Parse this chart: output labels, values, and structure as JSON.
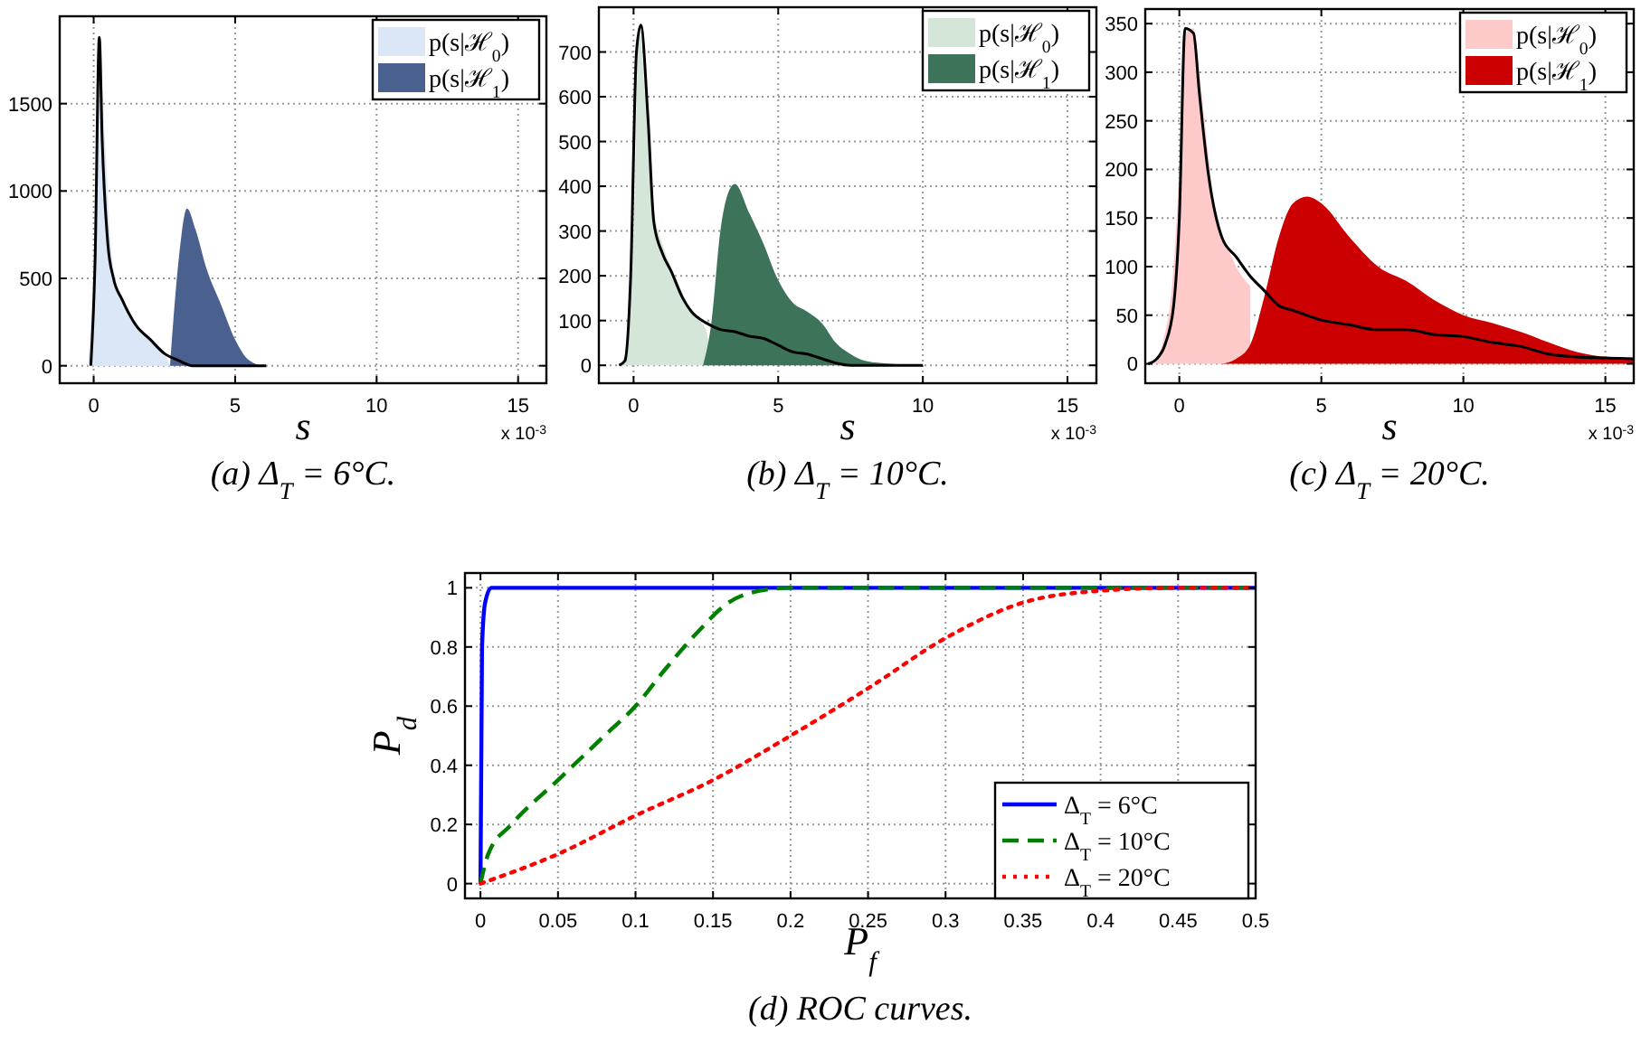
{
  "chart_data": [
    {
      "type": "area",
      "title": "(a) Δ$_{T}$ = 6°C.",
      "xlabel": "s",
      "annotations": [
        "x 10$^{-3}$"
      ],
      "xlim": [
        -1.2,
        16
      ],
      "ylim": [
        -100,
        2000
      ],
      "xticks": [
        0,
        5,
        10,
        15
      ],
      "yticks": [
        0,
        500,
        1000,
        1500
      ],
      "grid": true,
      "legend": "top right",
      "series": [
        {
          "name": "p(s|ℋ$_{0}$)",
          "color": "#dbe7f7",
          "x": [
            -0.2,
            0,
            0.2,
            0.4,
            0.6,
            0.8,
            1,
            1.5,
            2,
            2.5,
            2.7
          ],
          "values": [
            0,
            600,
            1880,
            1300,
            700,
            480,
            400,
            230,
            140,
            70,
            0
          ]
        },
        {
          "name": "p(s|ℋ$_{1}$)",
          "color": "#4a6190",
          "x": [
            2.7,
            3,
            3.3,
            3.6,
            4,
            4.5,
            5,
            5.5,
            6,
            6.1
          ],
          "values": [
            0,
            600,
            900,
            780,
            550,
            350,
            150,
            30,
            0,
            0
          ]
        },
        {
          "type": "line",
          "color": "#000000",
          "x": [
            -0.1,
            0.05,
            0.2,
            0.3,
            0.5,
            0.7,
            1,
            1.5,
            2,
            2.5,
            3,
            3.5,
            6.1
          ],
          "values": [
            0,
            600,
            1880,
            1300,
            700,
            500,
            380,
            230,
            150,
            70,
            30,
            0,
            0
          ]
        }
      ]
    },
    {
      "type": "area",
      "title": "(b) Δ$_{T}$ = 10°C.",
      "xlabel": "s",
      "annotations": [
        "x 10$^{-3}$"
      ],
      "xlim": [
        -1.2,
        16
      ],
      "ylim": [
        -40,
        800
      ],
      "xticks": [
        0,
        5,
        10,
        15
      ],
      "yticks": [
        0,
        100,
        200,
        300,
        400,
        500,
        600,
        700
      ],
      "grid": true,
      "legend": "top right",
      "series": [
        {
          "name": "p(s|ℋ$_{0}$)",
          "color": "#d3e6d8",
          "x": [
            -0.5,
            -0.2,
            0,
            0.2,
            0.4,
            0.7,
            1,
            1.3,
            1.7,
            2,
            2.5,
            2.7
          ],
          "values": [
            0,
            50,
            300,
            760,
            600,
            350,
            270,
            220,
            160,
            120,
            80,
            0
          ]
        },
        {
          "name": "p(s|ℋ$_{1}$)",
          "color": "#3d7358",
          "x": [
            2.4,
            2.7,
            3,
            3.3,
            3.5,
            4,
            4.5,
            5,
            5.5,
            6,
            6.5,
            7,
            7.5,
            8,
            9,
            10
          ],
          "values": [
            0,
            100,
            300,
            390,
            405,
            340,
            270,
            190,
            140,
            120,
            95,
            50,
            25,
            10,
            3,
            0
          ]
        },
        {
          "type": "line",
          "color": "#000000",
          "x": [
            -0.5,
            -0.3,
            -0.1,
            0.1,
            0.25,
            0.5,
            0.7,
            1,
            1.3,
            1.7,
            2,
            2.5,
            3,
            3.5,
            4,
            4.5,
            5,
            5.5,
            6,
            6.5,
            7,
            7.5,
            10
          ],
          "values": [
            0,
            10,
            200,
            700,
            760,
            550,
            320,
            250,
            210,
            150,
            120,
            95,
            80,
            75,
            65,
            60,
            45,
            30,
            25,
            15,
            5,
            0,
            0
          ]
        }
      ]
    },
    {
      "type": "area",
      "title": "(c) Δ$_{T}$ = 20°C.",
      "xlabel": "s",
      "annotations": [
        "x 10$^{-3}$"
      ],
      "xlim": [
        -1.2,
        16
      ],
      "ylim": [
        -20,
        365
      ],
      "xticks": [
        0,
        5,
        10,
        15
      ],
      "yticks": [
        0,
        50,
        100,
        150,
        200,
        250,
        300,
        350
      ],
      "grid": true,
      "legend": "top right",
      "series": [
        {
          "name": "p(s|ℋ$_{0}$)",
          "color": "#fdc9c9",
          "x": [
            -1.1,
            -0.8,
            -0.6,
            -0.2,
            0,
            0.2,
            0.5,
            0.7,
            1,
            1.3,
            1.7,
            2,
            2.5
          ],
          "values": [
            0,
            5,
            20,
            100,
            200,
            340,
            345,
            300,
            220,
            150,
            120,
            100,
            80
          ]
        },
        {
          "name": "p(s|ℋ$_{1}$)",
          "color": "#cc0000",
          "x": [
            1.5,
            2,
            2.5,
            3,
            3.5,
            4,
            4.5,
            5,
            6,
            7,
            8,
            9,
            10,
            11,
            12,
            13,
            14,
            15,
            16
          ],
          "values": [
            0,
            5,
            20,
            70,
            130,
            165,
            172,
            165,
            130,
            100,
            85,
            65,
            50,
            42,
            33,
            22,
            12,
            7,
            5
          ]
        },
        {
          "type": "line",
          "color": "#000000",
          "x": [
            -1.1,
            -0.8,
            -0.5,
            -0.2,
            0,
            0.2,
            0.5,
            0.7,
            1,
            1.5,
            2,
            2.5,
            3,
            3.5,
            4,
            5,
            6,
            7,
            8,
            9,
            10,
            11,
            12,
            13,
            14,
            15,
            16
          ],
          "values": [
            0,
            5,
            20,
            60,
            150,
            345,
            340,
            280,
            200,
            130,
            110,
            90,
            75,
            60,
            55,
            45,
            40,
            35,
            35,
            30,
            28,
            22,
            18,
            10,
            7,
            6,
            5
          ]
        }
      ]
    },
    {
      "type": "line",
      "title": "(d) ROC curves.",
      "xlabel": "P$_{f}$",
      "ylabel": "P$_{d}$",
      "xlim": [
        -0.01,
        0.5
      ],
      "ylim": [
        -0.05,
        1.05
      ],
      "xticks": [
        0,
        0.05,
        0.1,
        0.15,
        0.2,
        0.25,
        0.3,
        0.35,
        0.4,
        0.45,
        0.5
      ],
      "yticks": [
        0,
        0.2,
        0.4,
        0.6,
        0.8,
        1
      ],
      "grid": true,
      "legend": "bottom right",
      "series": [
        {
          "name": "Δ$_{T}$ = 6°C",
          "color": "#0000ff",
          "line_style": "solid",
          "x": [
            0,
            0.001,
            0.003,
            0.007,
            0.5
          ],
          "values": [
            0,
            0.8,
            0.95,
            1,
            1
          ]
        },
        {
          "name": "Δ$_{T}$ = 10°C",
          "color": "#008000",
          "line_style": "dashed",
          "x": [
            0,
            0.005,
            0.02,
            0.05,
            0.08,
            0.1,
            0.12,
            0.14,
            0.16,
            0.18,
            0.2,
            0.5
          ],
          "values": [
            0,
            0.1,
            0.2,
            0.35,
            0.5,
            0.6,
            0.73,
            0.85,
            0.95,
            0.99,
            1,
            1
          ]
        },
        {
          "name": "Δ$_{T}$ = 20°C",
          "color": "#ff0000",
          "line_style": "dotted",
          "x": [
            0,
            0.05,
            0.1,
            0.15,
            0.2,
            0.25,
            0.3,
            0.35,
            0.4,
            0.45,
            0.5
          ],
          "values": [
            0,
            0.1,
            0.23,
            0.35,
            0.5,
            0.66,
            0.83,
            0.95,
            0.99,
            1,
            1
          ]
        }
      ]
    }
  ]
}
